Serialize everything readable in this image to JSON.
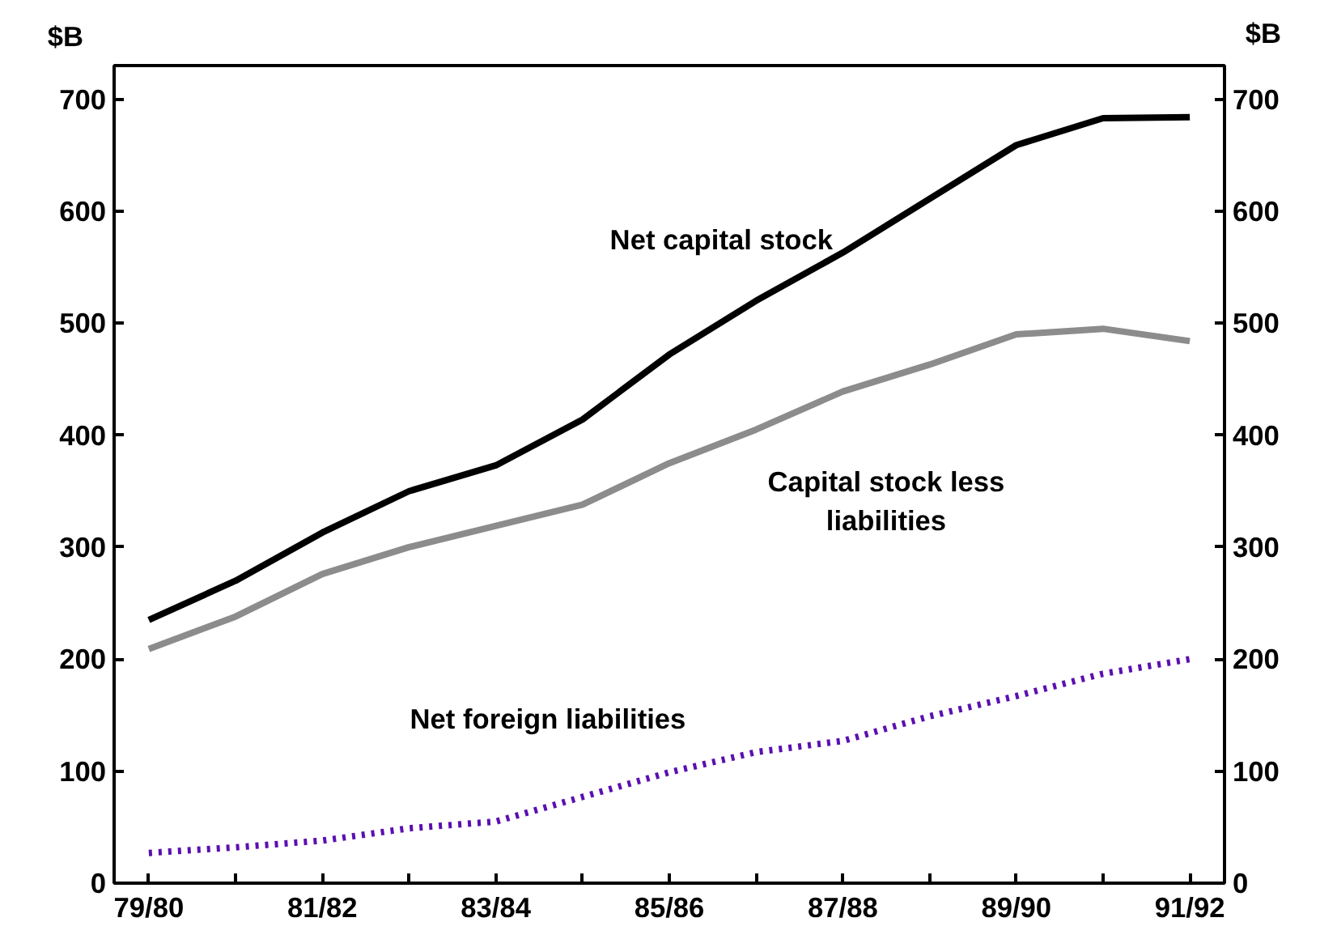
{
  "chart_data": {
    "type": "line",
    "ylabel": "$B",
    "y2label": "$B",
    "categories": [
      "79/80",
      null,
      "81/82",
      null,
      "83/84",
      null,
      "85/86",
      null,
      "87/88",
      null,
      "89/90",
      null,
      "91/92"
    ],
    "series": [
      {
        "name": "Net capital stock",
        "color": "#000000",
        "values": [
          235,
          270,
          313,
          350,
          373,
          414,
          472,
          520,
          563,
          611,
          659,
          683,
          684
        ]
      },
      {
        "name": "Capital stock less liabilities",
        "color": "#8c8c8c",
        "values": [
          209,
          238,
          276,
          300,
          319,
          338,
          375,
          405,
          439,
          463,
          490,
          495,
          484
        ]
      },
      {
        "name": "Net foreign liabilities",
        "color": "#5b0fb0",
        "line_style": "dotted",
        "values": [
          27,
          32,
          38,
          49,
          55,
          77,
          99,
          117,
          127,
          149,
          167,
          187,
          200
        ]
      }
    ],
    "ylim": [
      0,
      730
    ],
    "yticks": [
      0,
      100,
      200,
      300,
      400,
      500,
      600,
      700
    ],
    "y2lim": [
      0,
      730
    ],
    "y2ticks": [
      0,
      100,
      200,
      300,
      400,
      500,
      600,
      700
    ],
    "grid": false,
    "line_style": "solid",
    "marker": "none"
  }
}
